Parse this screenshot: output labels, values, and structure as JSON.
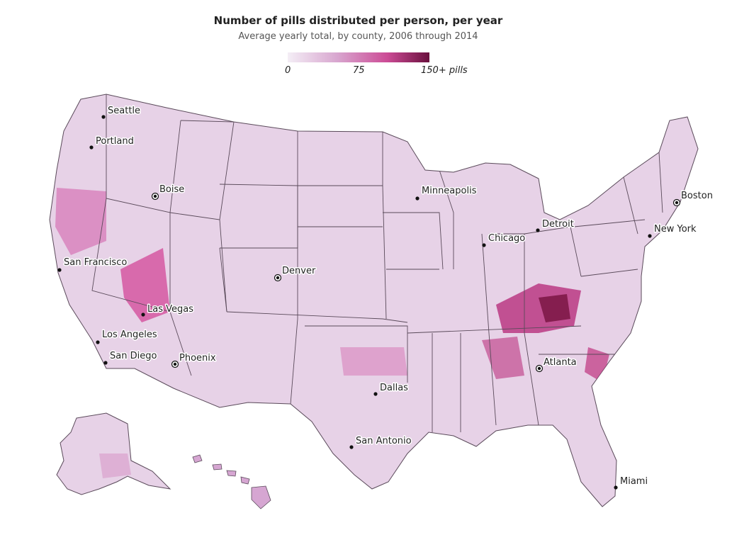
{
  "header": {
    "title": "Number of pills distributed per person, per year",
    "subtitle": "Average yearly total, by county, 2006 through 2014"
  },
  "legend": {
    "min_label": "0",
    "mid_label": "75",
    "max_label": "150+ pills",
    "colors": [
      "#f4eef6",
      "#d8a6cf",
      "#cc4c96",
      "#6a0f3d"
    ]
  },
  "map": {
    "land_color": "#e7d2e7",
    "border_color": "#5a4a5a",
    "dot_color": "#111111"
  },
  "cities": [
    {
      "id": "seattle",
      "name": "Seattle"
    },
    {
      "id": "portland",
      "name": "Portland"
    },
    {
      "id": "boise",
      "name": "Boise"
    },
    {
      "id": "san-francisco",
      "name": "San Francisco"
    },
    {
      "id": "las-vegas",
      "name": "Las Vegas"
    },
    {
      "id": "los-angeles",
      "name": "Los Angeles"
    },
    {
      "id": "san-diego",
      "name": "San Diego"
    },
    {
      "id": "phoenix",
      "name": "Phoenix"
    },
    {
      "id": "denver",
      "name": "Denver"
    },
    {
      "id": "minneapolis",
      "name": "Minneapolis"
    },
    {
      "id": "chicago",
      "name": "Chicago"
    },
    {
      "id": "detroit",
      "name": "Detroit"
    },
    {
      "id": "boston",
      "name": "Boston"
    },
    {
      "id": "new-york",
      "name": "New York"
    },
    {
      "id": "atlanta",
      "name": "Atlanta"
    },
    {
      "id": "dallas",
      "name": "Dallas"
    },
    {
      "id": "san-antonio",
      "name": "San Antonio"
    },
    {
      "id": "miami",
      "name": "Miami"
    }
  ]
}
